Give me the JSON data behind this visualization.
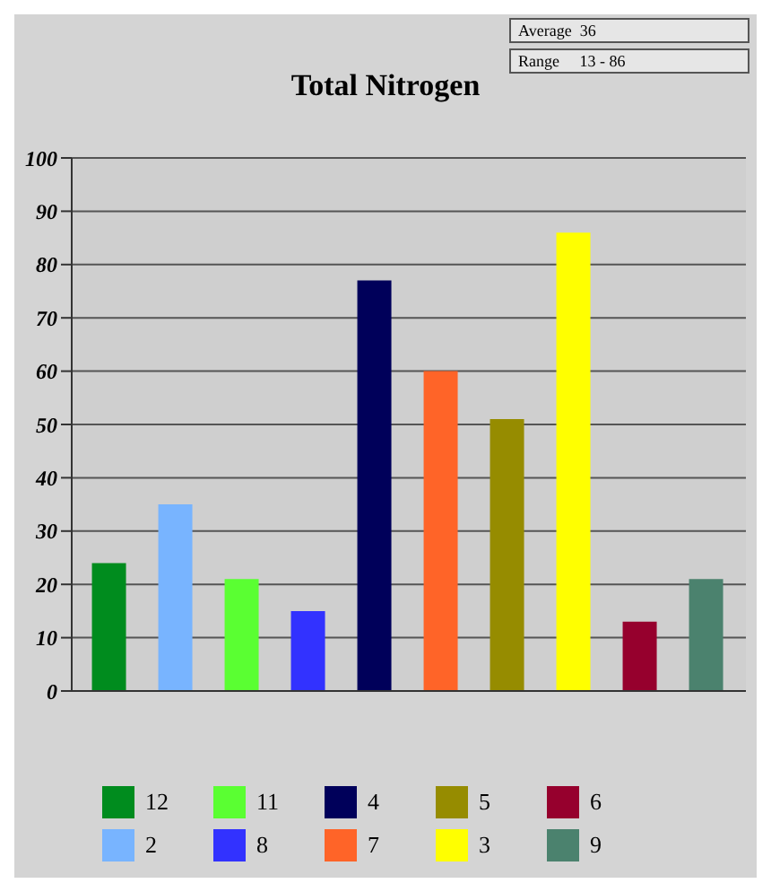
{
  "chart_data": {
    "type": "bar",
    "title": "Total Nitrogen",
    "annotations": [
      "Average  36",
      "Range     13 - 86"
    ],
    "categories": [
      null
    ],
    "series": [
      {
        "name": "12",
        "color": "#008c1e",
        "values": [
          24
        ]
      },
      {
        "name": "2",
        "color": "#78b4ff",
        "values": [
          35
        ]
      },
      {
        "name": "11",
        "color": "#5aff32",
        "values": [
          21
        ]
      },
      {
        "name": "8",
        "color": "#3232ff",
        "values": [
          15
        ]
      },
      {
        "name": "4",
        "color": "#00005a",
        "values": [
          77
        ]
      },
      {
        "name": "7",
        "color": "#ff6428",
        "values": [
          60
        ]
      },
      {
        "name": "5",
        "color": "#968c00",
        "values": [
          51
        ]
      },
      {
        "name": "3",
        "color": "#ffff00",
        "values": [
          86
        ]
      },
      {
        "name": "6",
        "color": "#96002d",
        "values": [
          13
        ]
      },
      {
        "name": "9",
        "color": "#4b826e",
        "values": [
          21
        ]
      }
    ],
    "ylim": [
      0,
      100
    ],
    "yticks": [
      0,
      10,
      20,
      30,
      40,
      50,
      60,
      70,
      80,
      90,
      100
    ],
    "grid": "y",
    "legend": "bottom"
  }
}
